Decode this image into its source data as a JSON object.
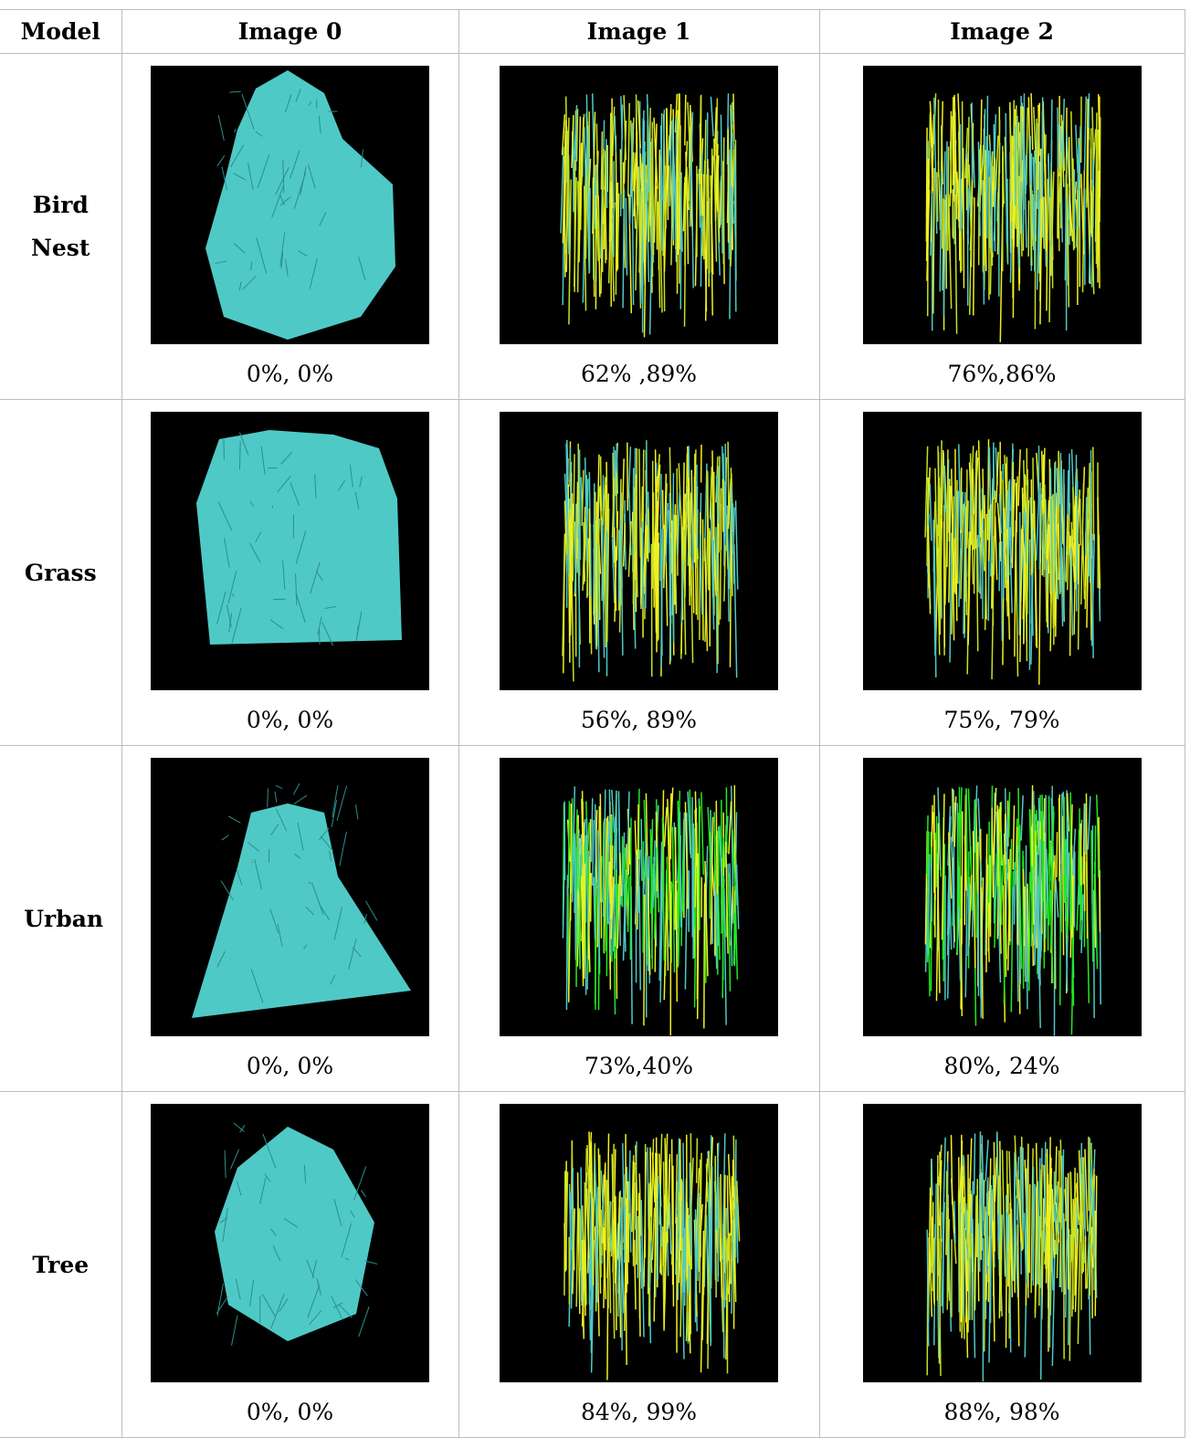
{
  "table": {
    "header": [
      "Model",
      "Image 0",
      "Image 1",
      "Image 2"
    ],
    "rows": [
      {
        "model": "Bird Nest",
        "cells": [
          "0%, 0%",
          "62% ,89%",
          "76%,86%"
        ]
      },
      {
        "model": "Grass",
        "cells": [
          "0%, 0%",
          "56%, 89%",
          "75%, 79%"
        ]
      },
      {
        "model": "Urban",
        "cells": [
          "0%, 0%",
          "73%,40%",
          "80%, 24%"
        ]
      },
      {
        "model": "Tree",
        "cells": [
          "0%, 0%",
          "84%, 99%",
          "88%, 98%"
        ]
      }
    ]
  }
}
